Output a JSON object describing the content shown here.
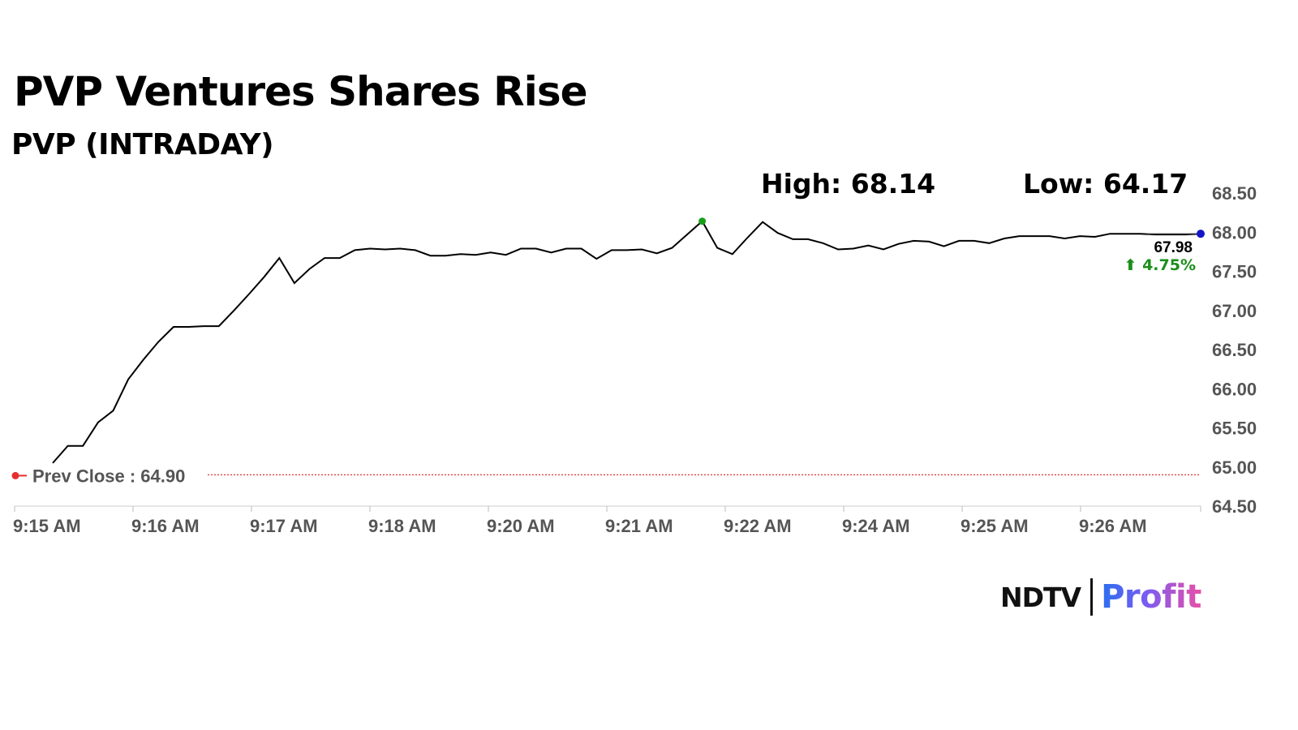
{
  "chart_data": {
    "type": "line",
    "title": "PVP Ventures Shares Rise",
    "subtitle": "PVP (INTRADAY)",
    "high_label": "High: 68.14",
    "low_label": "Low: 64.17",
    "prev_close": 64.9,
    "prev_close_label": "Prev Close : 64.90",
    "last_price": "67.98",
    "change_label": "⬆ 4.75%",
    "ylim": [
      64.5,
      68.5
    ],
    "yticks": [
      "68.50",
      "68.00",
      "67.50",
      "67.00",
      "66.50",
      "66.00",
      "65.50",
      "65.00",
      "64.50"
    ],
    "ytick_values": [
      68.5,
      68.0,
      67.5,
      67.0,
      66.5,
      66.0,
      65.5,
      65.0,
      64.5
    ],
    "xticks": [
      "9:15 AM",
      "9:16 AM",
      "9:17 AM",
      "9:18 AM",
      "9:20 AM",
      "9:21 AM",
      "9:22 AM",
      "9:24 AM",
      "9:25 AM",
      "9:26 AM"
    ],
    "values": [
      65.05,
      65.27,
      65.27,
      65.57,
      65.72,
      66.12,
      66.37,
      66.6,
      66.79,
      66.79,
      66.8,
      66.8,
      67.0,
      67.21,
      67.43,
      67.67,
      67.35,
      67.53,
      67.67,
      67.67,
      67.77,
      67.79,
      67.78,
      67.79,
      67.77,
      67.7,
      67.7,
      67.72,
      67.71,
      67.74,
      67.71,
      67.79,
      67.79,
      67.74,
      67.79,
      67.79,
      67.66,
      67.77,
      67.77,
      67.78,
      67.73,
      67.8,
      67.97,
      68.14,
      67.8,
      67.72,
      67.93,
      68.13,
      67.99,
      67.91,
      67.91,
      67.86,
      67.78,
      67.79,
      67.83,
      67.78,
      67.85,
      67.89,
      67.88,
      67.82,
      67.89,
      67.89,
      67.86,
      67.92,
      67.95,
      67.95,
      67.95,
      67.92,
      67.95,
      67.94,
      67.98,
      67.98,
      67.98,
      67.97,
      67.97,
      67.97,
      67.98
    ],
    "colors": {
      "line": "#000000",
      "prev_close": "#e53030",
      "high_dot": "#1a9e1a",
      "last_dot": "#1414c8",
      "change": "#1a8f1a",
      "axis_text": "#555555"
    }
  },
  "logo": {
    "ndtv": "NDTV",
    "profit": "Profit"
  }
}
